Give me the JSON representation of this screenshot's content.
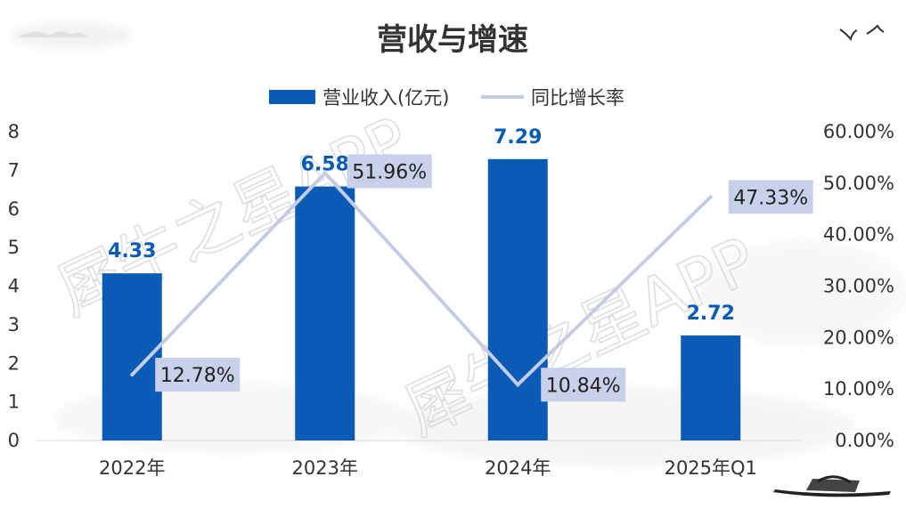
{
  "chart_data": {
    "type": "bar",
    "title": "营收与增速",
    "categories": [
      "2022年",
      "2023年",
      "2024年",
      "2025年Q1"
    ],
    "series": [
      {
        "name": "营业收入(亿元)",
        "type": "bar",
        "axis": "left",
        "values": [
          4.33,
          6.58,
          7.29,
          2.72
        ],
        "data_labels": [
          "4.33",
          "6.58",
          "7.29",
          "2.72"
        ],
        "color": "#0a5bb5"
      },
      {
        "name": "同比增长率",
        "type": "line",
        "axis": "right",
        "values": [
          12.78,
          51.96,
          10.84,
          47.33
        ],
        "data_labels": [
          "12.78%",
          "51.96%",
          "10.84%",
          "47.33%"
        ],
        "color": "#c5cde6"
      }
    ],
    "ylim_left": [
      0,
      8
    ],
    "yticks_left": [
      "0",
      "1",
      "2",
      "3",
      "4",
      "5",
      "6",
      "7",
      "8"
    ],
    "ylim_right": [
      0,
      60
    ],
    "yticks_right": [
      "0.00%",
      "10.00%",
      "20.00%",
      "30.00%",
      "40.00%",
      "50.00%",
      "60.00%"
    ],
    "legend_position": "top-center",
    "grid": false
  },
  "watermark": "犀牛之星APP",
  "colors": {
    "bar": "#0a5bb5",
    "line": "#c5cde6",
    "bar_label": "#0a5bb5",
    "line_label_bg": "#c9d0ea",
    "axis_text": "#333333"
  }
}
